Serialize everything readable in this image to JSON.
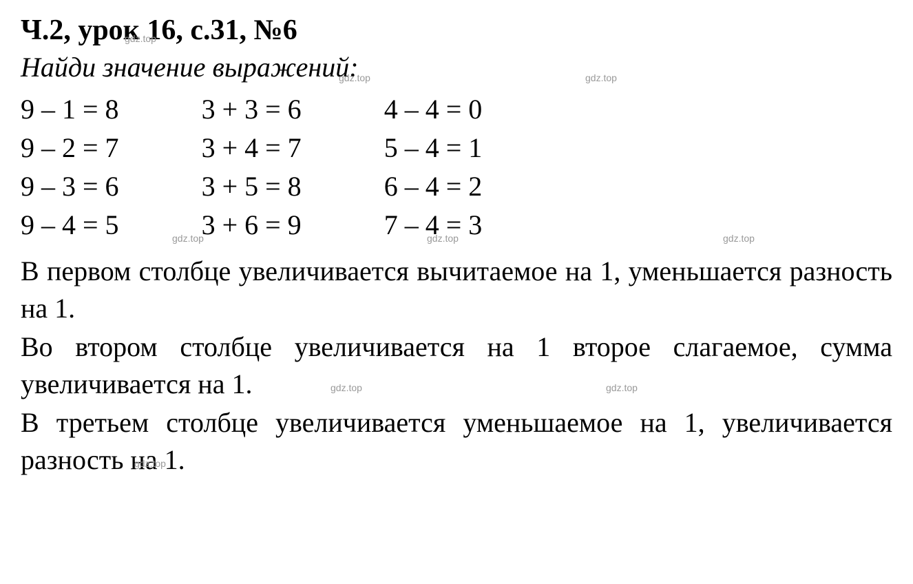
{
  "title": "Ч.2, урок 16, с.31, №6",
  "subtitle": "Найди значение выражений:",
  "columns": [
    [
      "9 – 1 = 8",
      "9 – 2 = 7",
      "9 – 3 = 6",
      "9 – 4 = 5"
    ],
    [
      "3 + 3 = 6",
      "3 + 4 = 7",
      "3 + 5 = 8",
      "3 + 6 = 9"
    ],
    [
      "4 – 4 = 0",
      "5 – 4 = 1",
      "6 – 4 = 2",
      "7 – 4 = 3"
    ]
  ],
  "paragraphs": [
    "В первом столбце увеличивается вычитаемое на 1, уменьшается разность на 1.",
    "Во втором столбце увеличивается на 1 второе слагаемое, сумма увеличивается на 1.",
    "В третьем столбце увеличивается уменьшаемое на 1, увеличивается разность на 1."
  ],
  "watermark": "gdz.top",
  "styles": {
    "background": "#ffffff",
    "text_color": "#000000",
    "watermark_color": "#999999",
    "title_fontsize": 42,
    "subtitle_fontsize": 40,
    "equation_fontsize": 40,
    "body_fontsize": 40,
    "font_family": "Times New Roman"
  }
}
